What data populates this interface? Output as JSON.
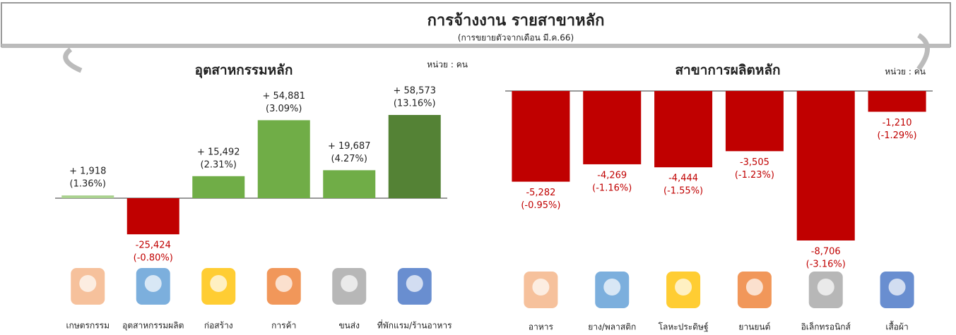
{
  "header": {
    "title": "การจ้างงาน รายสาขาหลัก",
    "subtitle": "(การขยายตัวจากเดือน มี.ค.66)"
  },
  "chart_data": [
    {
      "type": "bar",
      "title": "อุตสาหกรรมหลัก",
      "unit": "หน่วย : คน",
      "categories": [
        "เกษตรกรรม",
        "อุตสาหกรรมผลิต",
        "ก่อสร้าง",
        "การค้า",
        "ขนส่ง",
        "ที่พักแรม/ร้านอาหาร"
      ],
      "values": [
        1918,
        -25424,
        15492,
        54881,
        19687,
        58573
      ],
      "value_labels": [
        "+ 1,918",
        "-25,424",
        "+ 15,492",
        "+ 54,881",
        "+ 19,687",
        "+ 58,573"
      ],
      "pct_labels": [
        "(1.36%)",
        "(-0.80%)",
        "(2.31%)",
        "(3.09%)",
        "(4.27%)",
        "(13.16%)"
      ],
      "colors": [
        "#a9d18e",
        "#c00000",
        "#70ad47",
        "#70ad47",
        "#70ad47",
        "#548235"
      ]
    },
    {
      "type": "bar",
      "title": "สาขาการผลิตหลัก",
      "unit": "หน่วย : คน",
      "categories": [
        "อาหาร",
        "ยาง/พลาสติก",
        "โลหะประดิษฐ์",
        "ยานยนต์",
        "อิเล็กทรอนิกส์",
        "เสื้อผ้า"
      ],
      "values": [
        -5282,
        -4269,
        -4444,
        -3505,
        -8706,
        -1210
      ],
      "value_labels": [
        "-5,282",
        "-4,269",
        "-4,444",
        "-3,505",
        "-8,706",
        "-1,210"
      ],
      "pct_labels": [
        "(-0.95%)",
        "(-1.16%)",
        "(-1.55%)",
        "(-1.23%)",
        "(-3.16%)",
        "(-1.29%)"
      ],
      "colors": [
        "#c00000",
        "#c00000",
        "#c00000",
        "#c00000",
        "#c00000",
        "#c00000"
      ]
    }
  ]
}
